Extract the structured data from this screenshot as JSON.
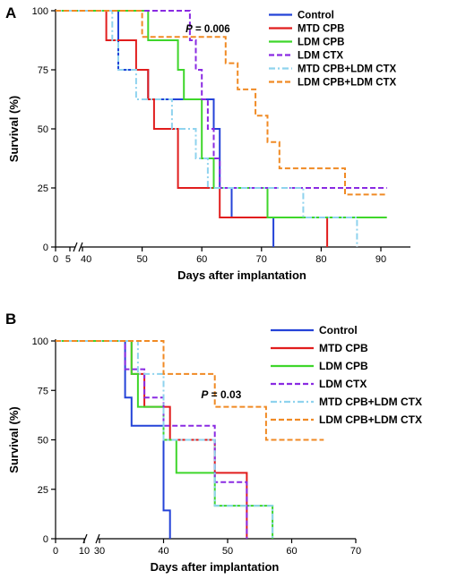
{
  "chart_data": [
    {
      "type": "line",
      "subtype": "step",
      "panel_label": "A",
      "xlabel": "Days after implantation",
      "ylabel": "Survival (%)",
      "x_ticks": [
        "0",
        "5",
        "40",
        "50",
        "60",
        "70",
        "80",
        "90"
      ],
      "y_ticks": [
        "0",
        "25",
        "50",
        "75",
        "100"
      ],
      "xlim": [
        0,
        92
      ],
      "ylim": [
        0,
        100
      ],
      "axis_break": [
        5,
        40
      ],
      "annotation": {
        "text": "P = 0.006",
        "x": 61,
        "y": 91
      },
      "legend_position": "top-right",
      "series": [
        {
          "name": "Control",
          "color": "#2443d8",
          "dash": "solid",
          "points": [
            [
              0,
              100
            ],
            [
              46,
              100
            ],
            [
              46,
              75
            ],
            [
              51,
              75
            ],
            [
              51,
              62.5
            ],
            [
              56,
              62.5
            ],
            [
              56,
              62.5
            ],
            [
              62,
              62.5
            ],
            [
              62,
              50
            ],
            [
              63,
              50
            ],
            [
              63,
              25
            ],
            [
              65,
              25
            ],
            [
              65,
              12.5
            ],
            [
              72,
              12.5
            ],
            [
              72,
              0
            ]
          ]
        },
        {
          "name": "MTD CPB",
          "color": "#e11d1d",
          "dash": "solid",
          "points": [
            [
              0,
              100
            ],
            [
              44,
              100
            ],
            [
              44,
              87.5
            ],
            [
              49,
              87.5
            ],
            [
              49,
              75
            ],
            [
              51,
              75
            ],
            [
              51,
              62.5
            ],
            [
              52,
              62.5
            ],
            [
              52,
              50
            ],
            [
              56,
              50
            ],
            [
              56,
              25
            ],
            [
              63,
              25
            ],
            [
              63,
              12.5
            ],
            [
              81,
              12.5
            ],
            [
              81,
              0
            ]
          ]
        },
        {
          "name": "LDM CPB",
          "color": "#3fd62b",
          "dash": "solid",
          "points": [
            [
              0,
              100
            ],
            [
              51,
              100
            ],
            [
              51,
              87.5
            ],
            [
              56,
              87.5
            ],
            [
              56,
              75
            ],
            [
              57,
              75
            ],
            [
              57,
              62.5
            ],
            [
              60,
              62.5
            ],
            [
              60,
              37.5
            ],
            [
              62,
              37.5
            ],
            [
              62,
              25
            ],
            [
              71,
              25
            ],
            [
              71,
              12.5
            ],
            [
              91,
              12.5
            ]
          ]
        },
        {
          "name": "LDM CTX",
          "color": "#8a2be2",
          "dash": "dash",
          "points": [
            [
              0,
              100
            ],
            [
              58,
              100
            ],
            [
              58,
              87.5
            ],
            [
              59,
              87.5
            ],
            [
              59,
              75
            ],
            [
              60,
              75
            ],
            [
              60,
              62.5
            ],
            [
              61,
              62.5
            ],
            [
              61,
              50
            ],
            [
              62,
              50
            ],
            [
              62,
              37.5
            ],
            [
              63,
              37.5
            ],
            [
              63,
              25
            ],
            [
              91,
              25
            ]
          ]
        },
        {
          "name": "MTD CPB+LDM CTX",
          "color": "#8fd3ee",
          "dash": "dashdot",
          "points": [
            [
              0,
              100
            ],
            [
              45,
              100
            ],
            [
              45,
              87.5
            ],
            [
              46,
              87.5
            ],
            [
              46,
              75
            ],
            [
              49,
              75
            ],
            [
              49,
              62.5
            ],
            [
              55,
              62.5
            ],
            [
              55,
              50
            ],
            [
              59,
              50
            ],
            [
              59,
              37.5
            ],
            [
              61,
              37.5
            ],
            [
              61,
              25
            ],
            [
              77,
              25
            ],
            [
              77,
              12.5
            ],
            [
              86,
              12.5
            ],
            [
              86,
              0
            ]
          ]
        },
        {
          "name": "LDM CPB+LDM CTX",
          "color": "#f08a24",
          "dash": "dash",
          "points": [
            [
              0,
              100
            ],
            [
              50,
              100
            ],
            [
              50,
              88.9
            ],
            [
              64,
              88.9
            ],
            [
              64,
              77.8
            ],
            [
              66,
              77.8
            ],
            [
              66,
              66.7
            ],
            [
              69,
              66.7
            ],
            [
              69,
              55.6
            ],
            [
              71,
              55.6
            ],
            [
              71,
              44.4
            ],
            [
              73,
              44.4
            ],
            [
              73,
              33.3
            ],
            [
              84,
              33.3
            ],
            [
              84,
              22.2
            ],
            [
              91,
              22.2
            ]
          ]
        }
      ]
    },
    {
      "type": "line",
      "subtype": "step",
      "panel_label": "B",
      "xlabel": "Days after implantation",
      "ylabel": "Survival (%)",
      "x_ticks": [
        "0",
        "10",
        "30",
        "40",
        "50",
        "60",
        "70"
      ],
      "y_ticks": [
        "0",
        "25",
        "50",
        "75",
        "100"
      ],
      "xlim": [
        0,
        70
      ],
      "ylim": [
        0,
        100
      ],
      "axis_break": [
        10,
        30
      ],
      "annotation": {
        "text": "P = 0.03",
        "x": 49,
        "y": 71
      },
      "legend_position": "top-right",
      "series": [
        {
          "name": "Control",
          "color": "#2443d8",
          "dash": "solid",
          "points": [
            [
              0,
              100
            ],
            [
              34,
              100
            ],
            [
              34,
              71.4
            ],
            [
              35,
              71.4
            ],
            [
              35,
              57.1
            ],
            [
              40,
              57.1
            ],
            [
              40,
              14.3
            ],
            [
              41,
              14.3
            ],
            [
              41,
              0
            ]
          ]
        },
        {
          "name": "MTD CPB",
          "color": "#e11d1d",
          "dash": "solid",
          "points": [
            [
              0,
              100
            ],
            [
              35,
              100
            ],
            [
              35,
              83.3
            ],
            [
              37,
              83.3
            ],
            [
              37,
              66.7
            ],
            [
              41,
              66.7
            ],
            [
              41,
              50
            ],
            [
              48,
              50
            ],
            [
              48,
              33.3
            ],
            [
              53,
              33.3
            ],
            [
              53,
              0
            ]
          ]
        },
        {
          "name": "LDM CPB",
          "color": "#3fd62b",
          "dash": "solid",
          "points": [
            [
              0,
              100
            ],
            [
              35,
              100
            ],
            [
              35,
              83.3
            ],
            [
              36,
              83.3
            ],
            [
              36,
              66.7
            ],
            [
              40,
              66.7
            ],
            [
              40,
              50
            ],
            [
              42,
              50
            ],
            [
              42,
              33.3
            ],
            [
              48,
              33.3
            ],
            [
              48,
              16.7
            ],
            [
              57,
              16.7
            ],
            [
              57,
              0
            ]
          ]
        },
        {
          "name": "LDM CTX",
          "color": "#8a2be2",
          "dash": "dash",
          "points": [
            [
              0,
              100
            ],
            [
              34,
              100
            ],
            [
              34,
              85.7
            ],
            [
              37,
              85.7
            ],
            [
              37,
              71.4
            ],
            [
              40,
              71.4
            ],
            [
              40,
              57.1
            ],
            [
              48,
              57.1
            ],
            [
              48,
              28.6
            ],
            [
              53,
              28.6
            ],
            [
              53,
              0
            ]
          ]
        },
        {
          "name": "MTD CPB+LDM CTX",
          "color": "#8fd3ee",
          "dash": "dashdot",
          "points": [
            [
              0,
              100
            ],
            [
              36,
              100
            ],
            [
              36,
              83.3
            ],
            [
              40,
              83.3
            ],
            [
              40,
              50
            ],
            [
              48,
              50
            ],
            [
              48,
              16.7
            ],
            [
              57,
              16.7
            ],
            [
              57,
              0
            ]
          ]
        },
        {
          "name": "LDM CPB+LDM CTX",
          "color": "#f08a24",
          "dash": "dash",
          "points": [
            [
              0,
              100
            ],
            [
              40,
              100
            ],
            [
              40,
              83.3
            ],
            [
              48,
              83.3
            ],
            [
              48,
              66.7
            ],
            [
              56,
              66.7
            ],
            [
              56,
              50
            ],
            [
              65,
              50
            ]
          ]
        }
      ]
    }
  ]
}
